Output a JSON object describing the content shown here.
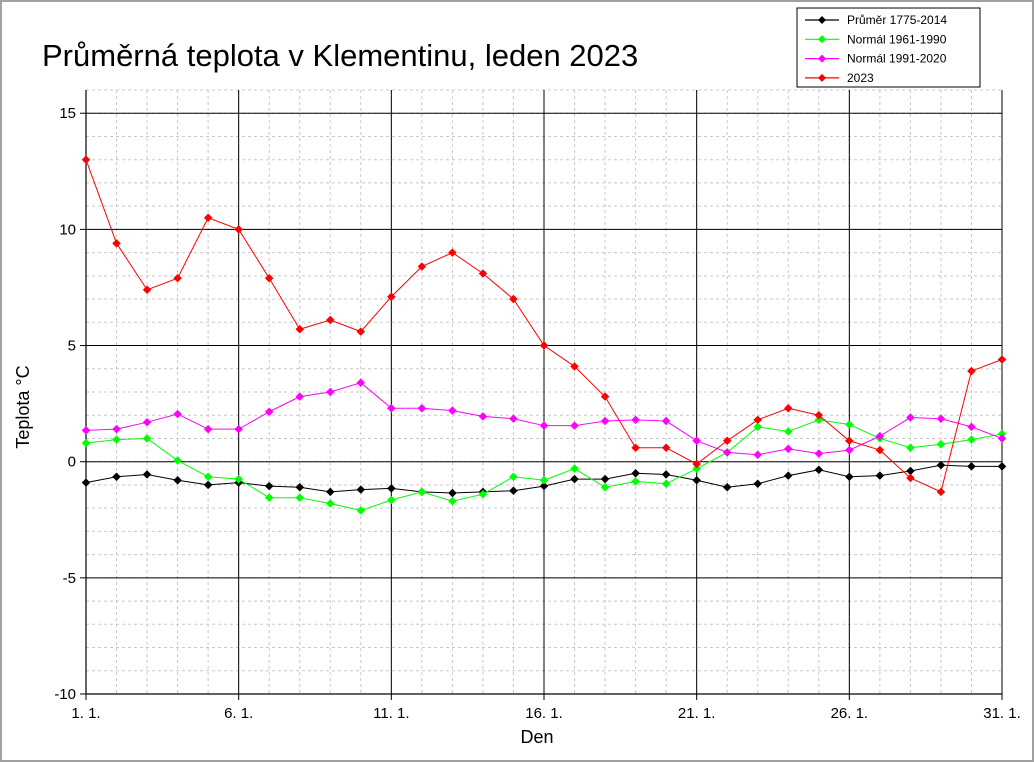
{
  "chart_data": {
    "type": "line",
    "title": "Průměrná teplota v Klementinu, leden 2023",
    "xlabel": "Den",
    "ylabel": "Teplota  °C",
    "x": [
      1,
      2,
      3,
      4,
      5,
      6,
      7,
      8,
      9,
      10,
      11,
      12,
      13,
      14,
      15,
      16,
      17,
      18,
      19,
      20,
      21,
      22,
      23,
      24,
      25,
      26,
      27,
      28,
      29,
      30,
      31
    ],
    "xlim": [
      1,
      31
    ],
    "ylim": [
      -10,
      16
    ],
    "x_ticks": [
      {
        "value": 1,
        "label": "1. 1."
      },
      {
        "value": 6,
        "label": "6. 1."
      },
      {
        "value": 11,
        "label": "11. 1."
      },
      {
        "value": 16,
        "label": "16. 1."
      },
      {
        "value": 21,
        "label": "21. 1."
      },
      {
        "value": 26,
        "label": "26. 1."
      },
      {
        "value": 31,
        "label": "31. 1."
      }
    ],
    "y_ticks": [
      {
        "value": 15,
        "label": "15"
      },
      {
        "value": 10,
        "label": "10"
      },
      {
        "value": 5,
        "label": "5"
      },
      {
        "value": 0,
        "label": "0"
      },
      {
        "value": -5,
        "label": "-5"
      },
      {
        "value": -10,
        "label": "-10"
      }
    ],
    "grid": true,
    "legend_position": "top-right",
    "series": [
      {
        "name": "Průměr 1775-2014",
        "color": "#000000",
        "values": [
          -0.9,
          -0.65,
          -0.55,
          -0.8,
          -1.0,
          -0.9,
          -1.05,
          -1.1,
          -1.3,
          -1.2,
          -1.15,
          -1.3,
          -1.35,
          -1.3,
          -1.25,
          -1.05,
          -0.75,
          -0.75,
          -0.5,
          -0.55,
          -0.8,
          -1.1,
          -0.95,
          -0.6,
          -0.35,
          -0.65,
          -0.6,
          -0.4,
          -0.15,
          -0.2,
          -0.2
        ]
      },
      {
        "name": "Normál 1961-1990",
        "color": "#00ff00",
        "values": [
          0.8,
          0.95,
          1.0,
          0.05,
          -0.65,
          -0.75,
          -1.55,
          -1.55,
          -1.8,
          -2.1,
          -1.65,
          -1.3,
          -1.7,
          -1.4,
          -0.65,
          -0.8,
          -0.3,
          -1.1,
          -0.85,
          -0.95,
          -0.3,
          0.4,
          1.5,
          1.3,
          1.8,
          1.6,
          1.0,
          0.6,
          0.75,
          0.95,
          1.2
        ]
      },
      {
        "name": "Normál 1991-2020",
        "color": "#ff00ff",
        "values": [
          1.35,
          1.4,
          1.7,
          2.05,
          1.4,
          1.4,
          2.15,
          2.8,
          3.0,
          3.4,
          2.3,
          2.3,
          2.2,
          1.95,
          1.85,
          1.55,
          1.55,
          1.75,
          1.8,
          1.75,
          0.9,
          0.4,
          0.3,
          0.55,
          0.35,
          0.5,
          1.1,
          1.9,
          1.85,
          1.5,
          1.0
        ]
      },
      {
        "name": "2023",
        "color": "#ff0000",
        "values": [
          13.0,
          9.4,
          7.4,
          7.9,
          10.5,
          10.0,
          7.9,
          5.7,
          6.1,
          5.6,
          7.1,
          8.4,
          9.0,
          8.1,
          7.0,
          5.0,
          4.1,
          2.8,
          0.6,
          0.6,
          -0.1,
          0.9,
          1.8,
          2.3,
          2.0,
          0.9,
          0.5,
          -0.7,
          -1.3,
          3.9,
          4.4
        ]
      }
    ]
  }
}
